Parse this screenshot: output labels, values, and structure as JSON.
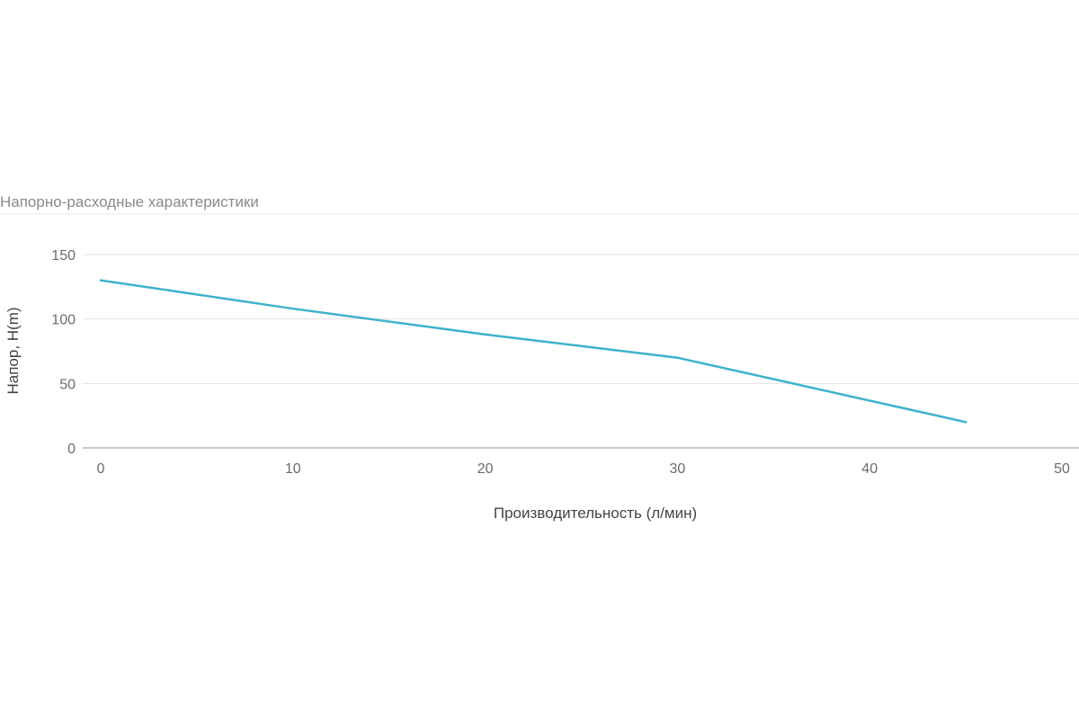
{
  "chart_data": {
    "type": "line",
    "title": "Напорно-расходные характеристики",
    "xlabel": "Производительность (л/мин)",
    "ylabel": "Напор, H(m)",
    "xlim": [
      0,
      50
    ],
    "ylim": [
      0,
      150
    ],
    "x_ticks": [
      0,
      10,
      20,
      30,
      40,
      50
    ],
    "y_ticks": [
      0,
      50,
      100,
      150
    ],
    "grid": true,
    "legend": "none",
    "series": [
      {
        "color": "#3fb2cc",
        "points": [
          {
            "x": 0,
            "y": 130
          },
          {
            "x": 10,
            "y": 108
          },
          {
            "x": 20,
            "y": 88
          },
          {
            "x": 30,
            "y": 70
          },
          {
            "x": 45,
            "y": 20
          }
        ]
      }
    ]
  }
}
